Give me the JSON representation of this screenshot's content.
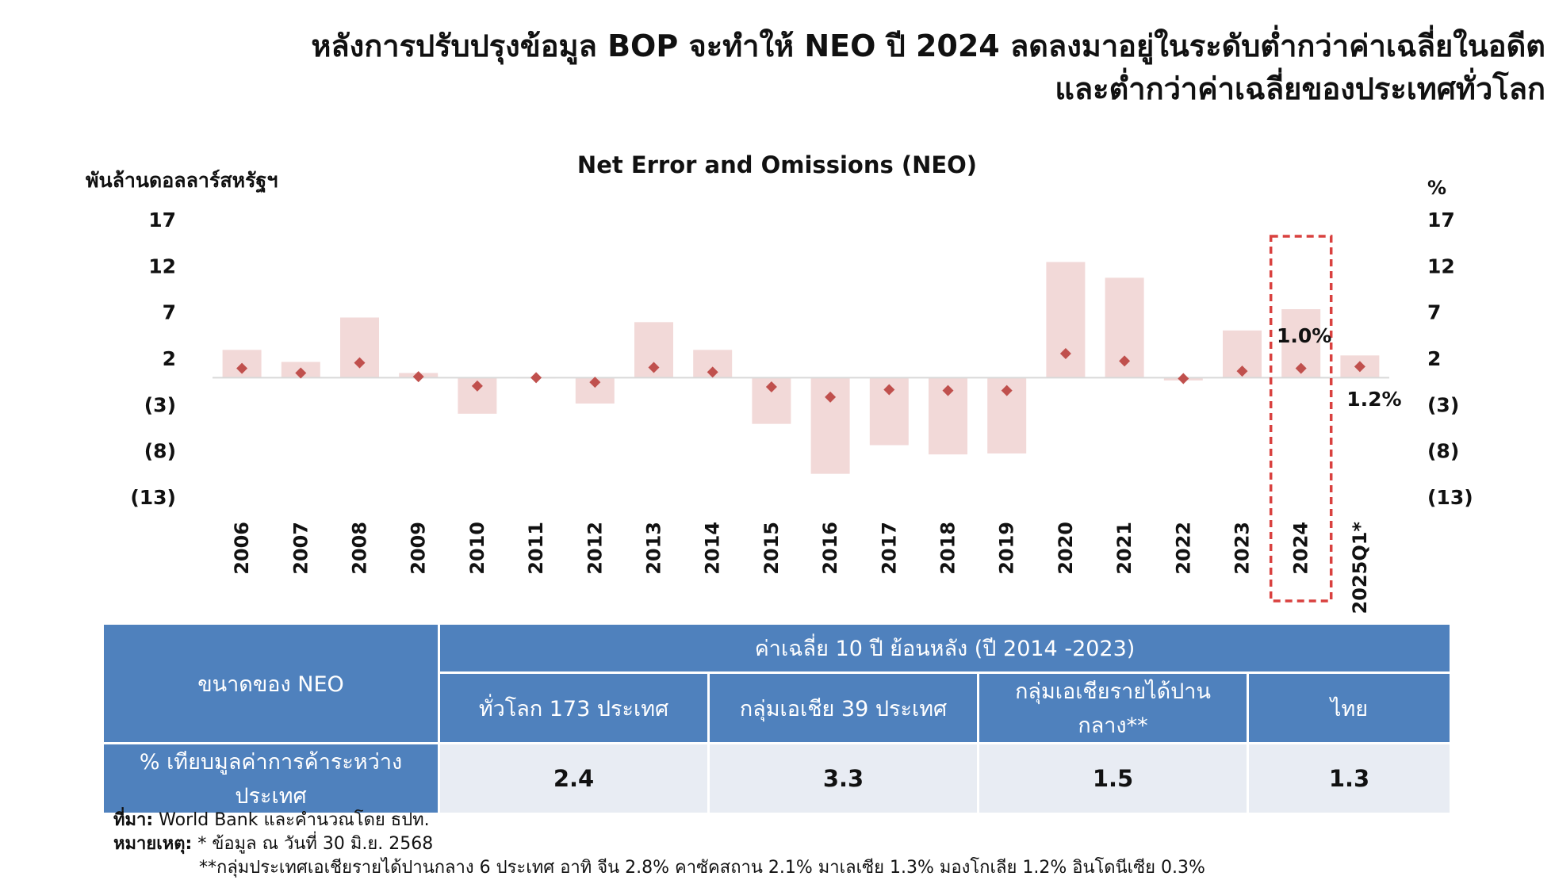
{
  "header": {
    "title_line1": "หลังการปรับปรุงข้อมูล BOP จะทำให้ NEO ปี 2024 ลดลงมาอยู่ในระดับต่ำกว่าค่าเฉลี่ยในอดีต",
    "title_line2": "และต่ำกว่าค่าเฉลี่ยของประเทศทั่วโลก"
  },
  "chart_data": {
    "type": "bar",
    "title": "Net Error and Omissions (NEO)",
    "ylabel_left": "พันล้านดอลลาร์สหรัฐฯ",
    "ylabel_right": "%",
    "y_ticks": [
      "17",
      "12",
      "7",
      "2",
      "(3)",
      "(8)",
      "(13)"
    ],
    "y_tick_values": [
      17,
      12,
      7,
      2,
      -3,
      -8,
      -13
    ],
    "ylim": [
      -13,
      17
    ],
    "categories": [
      "2006",
      "2007",
      "2008",
      "2009",
      "2010",
      "2011",
      "2012",
      "2013",
      "2014",
      "2015",
      "2016",
      "2017",
      "2018",
      "2019",
      "2020",
      "2021",
      "2022",
      "2023",
      "2024",
      "2025Q1*"
    ],
    "series": [
      {
        "kind": "bar",
        "axis": "left",
        "values": [
          3.0,
          1.7,
          6.5,
          0.5,
          -3.9,
          0.0,
          -2.8,
          6.0,
          3.0,
          -5.0,
          -10.4,
          -7.3,
          -8.3,
          -8.2,
          12.5,
          10.8,
          -0.3,
          5.1,
          7.4,
          2.4
        ]
      },
      {
        "kind": "marker",
        "axis": "right",
        "values": [
          1.0,
          0.5,
          1.6,
          0.1,
          -0.9,
          0.0,
          -0.5,
          1.1,
          0.6,
          -1.0,
          -2.1,
          -1.3,
          -1.4,
          -1.4,
          2.6,
          1.8,
          -0.1,
          0.7,
          1.0,
          1.2
        ]
      }
    ],
    "annotations": [
      {
        "category": "2024",
        "text": "1.0%"
      },
      {
        "category": "2025Q1*",
        "text": "1.2%"
      }
    ],
    "highlight": "2024",
    "colors": {
      "bar": "#f2d9d8",
      "marker": "#c0504d",
      "highlight_box": "#d9413f"
    }
  },
  "table": {
    "row_header": "ขนาดของ NEO",
    "group_header": "ค่าเฉลี่ย 10 ปี ย้อนหลัง (ปี 2014 -2023)",
    "columns": [
      "ทั่วโลก 173 ประเทศ",
      "กลุ่มเอเชีย 39 ประเทศ",
      "กลุ่มเอเชียรายได้ปานกลาง**",
      "ไทย"
    ],
    "row_label": "% เทียบมูลค่าการค้าระหว่างประเทศ",
    "values": [
      "2.4",
      "3.3",
      "1.5",
      "1.3"
    ],
    "colors": {
      "header": "#4f81bd",
      "cell": "#e8ecf3"
    }
  },
  "notes": {
    "source_label": "ที่มา:",
    "source_text": " World Bank และคำนวณโดย ธปท.",
    "remark_label": "หมายเหตุ:",
    "remark_text": " * ข้อมูล ณ วันที่ 30 มิ.ย. 2568",
    "remark_line2": "**กลุ่มประเทศเอเชียรายได้ปานกลาง 6 ประเทศ อาทิ จีน 2.8% คาซัคสถาน 2.1% มาเลเซีย 1.3% มองโกเลีย 1.2% อินโดนีเซีย 0.3%"
  }
}
